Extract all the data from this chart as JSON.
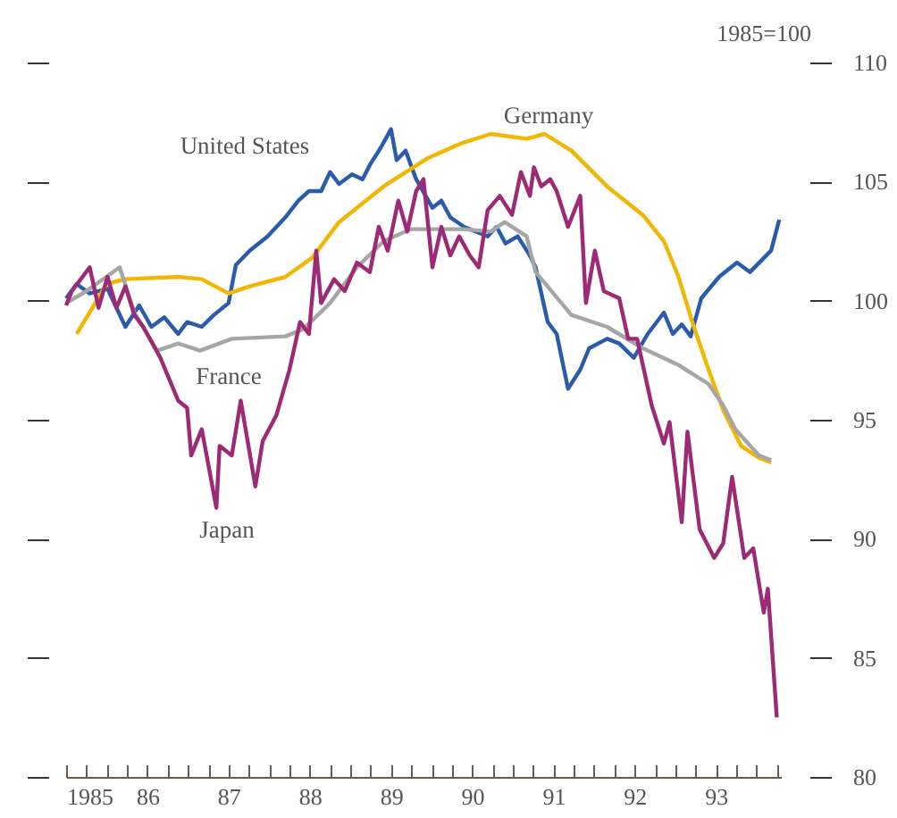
{
  "chart_data": {
    "type": "line",
    "ylabel": "1985=100",
    "xlim": [
      1985,
      1993.8
    ],
    "xticks": [
      {
        "value": 1985,
        "label": "1985"
      },
      {
        "value": 1985.25,
        "label": null
      },
      {
        "value": 1985.5,
        "label": null
      },
      {
        "value": 1985.75,
        "label": null
      },
      {
        "value": 1986,
        "label": "86"
      },
      {
        "value": 1986.25,
        "label": null
      },
      {
        "value": 1986.5,
        "label": null
      },
      {
        "value": 1986.75,
        "label": null
      },
      {
        "value": 1987,
        "label": "87"
      },
      {
        "value": 1987.25,
        "label": null
      },
      {
        "value": 1987.5,
        "label": null
      },
      {
        "value": 1987.75,
        "label": null
      },
      {
        "value": 1988,
        "label": "88"
      },
      {
        "value": 1988.25,
        "label": null
      },
      {
        "value": 1988.5,
        "label": null
      },
      {
        "value": 1988.75,
        "label": null
      },
      {
        "value": 1989,
        "label": "89"
      },
      {
        "value": 1989.25,
        "label": null
      },
      {
        "value": 1989.5,
        "label": null
      },
      {
        "value": 1989.75,
        "label": null
      },
      {
        "value": 1990,
        "label": "90"
      },
      {
        "value": 1990.25,
        "label": null
      },
      {
        "value": 1990.5,
        "label": null
      },
      {
        "value": 1990.75,
        "label": null
      },
      {
        "value": 1991,
        "label": "91"
      },
      {
        "value": 1991.25,
        "label": null
      },
      {
        "value": 1991.5,
        "label": null
      },
      {
        "value": 1991.75,
        "label": null
      },
      {
        "value": 1992,
        "label": "92"
      },
      {
        "value": 1992.25,
        "label": null
      },
      {
        "value": 1992.5,
        "label": null
      },
      {
        "value": 1992.75,
        "label": null
      },
      {
        "value": 1993,
        "label": "93"
      },
      {
        "value": 1993.25,
        "label": null
      },
      {
        "value": 1993.5,
        "label": null
      },
      {
        "value": 1993.75,
        "label": null
      }
    ],
    "ylim": [
      80,
      110
    ],
    "yticks": [
      80,
      85,
      90,
      95,
      100,
      105,
      110
    ],
    "grid": false,
    "marker": "none",
    "line_style": "solid",
    "series": [
      {
        "name": "United States",
        "color": "#2b5cab",
        "x": [
          1985.0,
          1985.13,
          1985.29,
          1985.51,
          1985.73,
          1985.9,
          1986.05,
          1986.21,
          1986.38,
          1986.49,
          1986.67,
          1986.82,
          1987.0,
          1987.09,
          1987.26,
          1987.48,
          1987.7,
          1987.86,
          1987.99,
          1988.14,
          1988.25,
          1988.36,
          1988.52,
          1988.65,
          1988.74,
          1988.87,
          1989.0,
          1989.07,
          1989.18,
          1989.31,
          1989.51,
          1989.62,
          1989.73,
          1989.9,
          1990.19,
          1990.3,
          1990.41,
          1990.56,
          1990.71,
          1990.78,
          1990.93,
          1991.04,
          1991.18,
          1991.33,
          1991.44,
          1991.66,
          1991.81,
          1991.99,
          1992.16,
          1992.36,
          1992.47,
          1992.58,
          1992.69,
          1992.82,
          1993.04,
          1993.26,
          1993.42,
          1993.68,
          1993.78
        ],
        "values": [
          100.1,
          100.7,
          100.3,
          100.5,
          98.9,
          99.8,
          98.9,
          99.3,
          98.6,
          99.1,
          98.9,
          99.4,
          99.9,
          101.5,
          102.1,
          102.7,
          103.5,
          104.2,
          104.6,
          104.6,
          105.4,
          104.9,
          105.3,
          105.1,
          105.7,
          106.4,
          107.2,
          105.9,
          106.3,
          105.1,
          103.9,
          104.2,
          103.5,
          103.1,
          102.7,
          103.1,
          102.4,
          102.7,
          101.9,
          101.4,
          99.1,
          98.6,
          96.3,
          97.1,
          98.0,
          98.4,
          98.2,
          97.6,
          98.6,
          99.5,
          98.6,
          99.0,
          98.5,
          100.1,
          101.0,
          101.6,
          101.2,
          102.1,
          103.4
        ]
      },
      {
        "name": "Germany",
        "color": "#f2b705",
        "x": [
          1985.13,
          1985.5,
          1985.72,
          1986.38,
          1986.67,
          1987.0,
          1987.26,
          1987.7,
          1988.03,
          1988.36,
          1988.91,
          1989.46,
          1989.86,
          1990.23,
          1990.67,
          1990.89,
          1991.22,
          1991.66,
          1992.1,
          1992.36,
          1992.54,
          1992.71,
          1992.89,
          1993.09,
          1993.31,
          1993.53,
          1993.68
        ],
        "values": [
          98.6,
          100.7,
          100.9,
          101.0,
          100.9,
          100.3,
          100.6,
          101.0,
          101.8,
          103.3,
          104.8,
          106.0,
          106.6,
          107.0,
          106.8,
          107.0,
          106.3,
          104.8,
          103.6,
          102.5,
          101.0,
          99.1,
          97.3,
          95.4,
          93.9,
          93.4,
          93.2
        ]
      },
      {
        "name": "France",
        "color": "#a6a6a6",
        "x": [
          1985.0,
          1985.25,
          1985.66,
          1985.84,
          1986.12,
          1986.38,
          1986.65,
          1987.04,
          1987.7,
          1987.92,
          1988.25,
          1988.58,
          1988.91,
          1989.24,
          1989.9,
          1990.23,
          1990.4,
          1990.67,
          1990.78,
          1991.0,
          1991.22,
          1991.66,
          1992.1,
          1992.54,
          1992.91,
          1993.09,
          1993.24,
          1993.53,
          1993.68
        ],
        "values": [
          99.9,
          100.4,
          101.4,
          99.5,
          97.9,
          98.2,
          97.9,
          98.4,
          98.5,
          98.8,
          99.9,
          101.4,
          102.5,
          103.0,
          103.0,
          102.9,
          103.3,
          102.7,
          101.2,
          100.3,
          99.4,
          98.9,
          98.0,
          97.3,
          96.5,
          95.6,
          94.6,
          93.5,
          93.3
        ]
      },
      {
        "name": "Japan",
        "color": "#9c2a75",
        "x": [
          1985.0,
          1985.07,
          1985.29,
          1985.4,
          1985.51,
          1985.62,
          1985.73,
          1985.84,
          1985.95,
          1986.16,
          1986.38,
          1986.49,
          1986.54,
          1986.67,
          1986.85,
          1986.89,
          1987.04,
          1987.15,
          1987.33,
          1987.42,
          1987.59,
          1987.75,
          1987.88,
          1987.99,
          1988.08,
          1988.14,
          1988.3,
          1988.43,
          1988.58,
          1988.74,
          1988.85,
          1988.96,
          1989.09,
          1989.2,
          1989.31,
          1989.4,
          1989.51,
          1989.62,
          1989.73,
          1989.84,
          1989.97,
          1990.08,
          1990.19,
          1990.34,
          1990.49,
          1990.6,
          1990.71,
          1990.76,
          1990.85,
          1990.96,
          1991.04,
          1991.18,
          1991.33,
          1991.4,
          1991.51,
          1991.62,
          1991.81,
          1991.92,
          1992.03,
          1992.21,
          1992.36,
          1992.43,
          1992.58,
          1992.65,
          1992.8,
          1992.98,
          1993.09,
          1993.2,
          1993.35,
          1993.46,
          1993.59,
          1993.64,
          1993.75
        ],
        "values": [
          99.8,
          100.4,
          101.4,
          99.7,
          101.0,
          99.7,
          100.6,
          99.4,
          98.9,
          97.6,
          95.8,
          95.5,
          93.5,
          94.6,
          91.3,
          93.9,
          93.5,
          95.8,
          92.2,
          94.1,
          95.2,
          97.1,
          99.1,
          98.6,
          102.1,
          99.9,
          100.9,
          100.4,
          101.6,
          101.2,
          103.1,
          102.1,
          104.2,
          102.9,
          104.6,
          105.1,
          101.4,
          103.1,
          101.9,
          102.7,
          101.9,
          101.4,
          103.8,
          104.4,
          103.6,
          105.4,
          104.4,
          105.6,
          104.8,
          105.1,
          104.6,
          103.1,
          104.4,
          99.9,
          102.1,
          100.4,
          100.1,
          98.4,
          98.4,
          95.6,
          94.0,
          94.9,
          90.7,
          94.5,
          90.4,
          89.2,
          89.8,
          92.6,
          89.2,
          89.6,
          86.9,
          87.9,
          82.5
        ]
      }
    ]
  }
}
